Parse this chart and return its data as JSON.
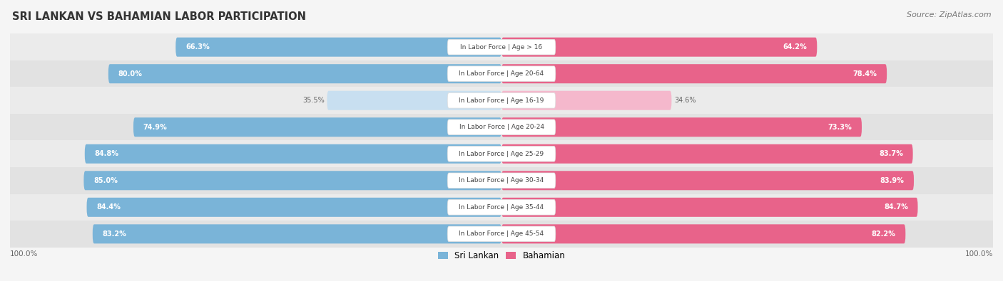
{
  "title": "SRI LANKAN VS BAHAMIAN LABOR PARTICIPATION",
  "source": "Source: ZipAtlas.com",
  "categories": [
    "In Labor Force | Age > 16",
    "In Labor Force | Age 20-64",
    "In Labor Force | Age 16-19",
    "In Labor Force | Age 20-24",
    "In Labor Force | Age 25-29",
    "In Labor Force | Age 30-34",
    "In Labor Force | Age 35-44",
    "In Labor Force | Age 45-54"
  ],
  "sri_lankan": [
    66.3,
    80.0,
    35.5,
    74.9,
    84.8,
    85.0,
    84.4,
    83.2
  ],
  "bahamian": [
    64.2,
    78.4,
    34.6,
    73.3,
    83.7,
    83.9,
    84.7,
    82.2
  ],
  "sri_lankan_color_strong": "#7ab4d8",
  "sri_lankan_color_light": "#c8dff0",
  "bahamian_color_strong": "#e8638a",
  "bahamian_color_light": "#f5b8cc",
  "label_color_dark": "#666666",
  "row_bg": "#ebebeb",
  "background_color": "#f5f5f5",
  "center_label_color": "#444444",
  "max_value": 100.0,
  "legend_sri_lankan": "Sri Lankan",
  "legend_bahamian": "Bahamian",
  "threshold": 50.0
}
